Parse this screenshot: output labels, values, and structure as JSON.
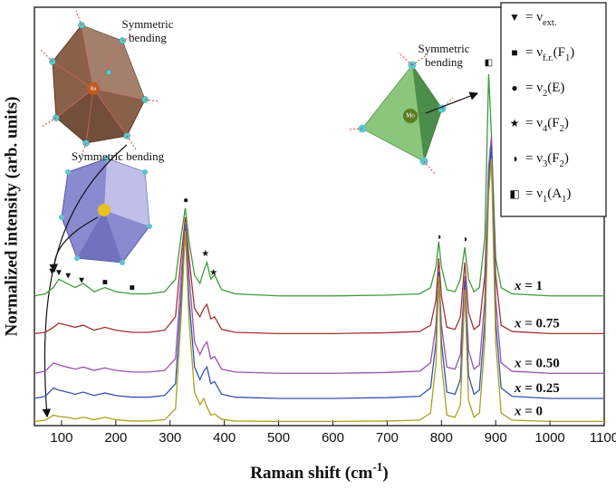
{
  "chart_data": {
    "type": "line",
    "y_label": "Normalized intensity (arb. units)",
    "x_label": [
      {
        "text": "Raman shift (cm"
      },
      {
        "text": "-1",
        "sup": true
      },
      {
        "text": ")"
      }
    ],
    "xlim": [
      50,
      1100
    ],
    "xticks": [
      100,
      200,
      300,
      400,
      500,
      600,
      700,
      800,
      900,
      1000,
      1100
    ],
    "ylim": [
      0,
      100
    ],
    "x": [
      50,
      70,
      85,
      95,
      110,
      125,
      140,
      160,
      180,
      200,
      230,
      260,
      290,
      310,
      320,
      328,
      335,
      345,
      355,
      362,
      368,
      375,
      382,
      395,
      420,
      500,
      600,
      700,
      760,
      780,
      790,
      795,
      800,
      810,
      825,
      835,
      843,
      850,
      860,
      870,
      880,
      887,
      892,
      900,
      910,
      930,
      1000,
      1100
    ],
    "series": [
      {
        "name": [
          {
            "text": "x",
            "italic": true
          },
          {
            "text": " = 1"
          }
        ],
        "color": "#3f9a3a",
        "values": [
          31,
          31.5,
          33,
          35,
          34,
          33,
          34,
          32,
          33,
          32,
          31.5,
          31.5,
          32,
          35,
          45,
          52,
          44,
          36,
          34,
          37,
          39,
          35,
          36,
          32.5,
          31.5,
          31,
          31,
          31.2,
          31.5,
          33,
          38,
          44,
          38,
          32.5,
          32,
          35,
          42.6,
          35,
          32,
          33,
          45,
          84,
          70,
          40,
          33,
          31.5,
          31,
          31
        ]
      },
      {
        "name": [
          {
            "text": "x",
            "italic": true
          },
          {
            "text": " = 0.75"
          }
        ],
        "color": "#a23232",
        "values": [
          22,
          22.3,
          23.5,
          24.5,
          24,
          23.5,
          24,
          22.8,
          23.5,
          22.8,
          22.3,
          22.3,
          22.8,
          26,
          40,
          49.8,
          40,
          28,
          26,
          28,
          29,
          25.5,
          26,
          23,
          22.3,
          22,
          22,
          22.2,
          22.5,
          24,
          30,
          40,
          31,
          23.5,
          23,
          26,
          39,
          27,
          23,
          24,
          36,
          60,
          65.5,
          36,
          24,
          22.5,
          22,
          22
        ]
      },
      {
        "name": [
          {
            "text": "x",
            "italic": true
          },
          {
            "text": " = 0.50"
          }
        ],
        "color": "#9a52ad",
        "values": [
          12.5,
          13,
          15,
          14.5,
          14,
          13.5,
          14,
          13.2,
          13.8,
          13.2,
          12.8,
          12.8,
          13.2,
          16,
          35,
          48.7,
          36,
          20,
          17,
          19,
          20,
          16,
          16.5,
          13.5,
          12.8,
          12.5,
          12.5,
          12.7,
          13,
          15,
          24,
          36.8,
          24,
          14,
          13.5,
          17,
          35.7,
          18,
          13.5,
          14.5,
          30,
          62,
          69,
          30,
          15,
          13,
          12.5,
          12.5
        ]
      },
      {
        "name": [
          {
            "text": "x",
            "italic": true
          },
          {
            "text": " = 0.25"
          }
        ],
        "color": "#3453b2",
        "values": [
          6.5,
          7,
          9,
          8.5,
          8,
          7.5,
          8,
          7.2,
          7.8,
          7.2,
          6.8,
          6.8,
          7.2,
          10,
          30,
          47.6,
          30,
          14,
          11,
          13,
          14,
          10,
          10.5,
          7.5,
          6.8,
          6.5,
          6.5,
          6.7,
          7,
          9,
          20,
          36.8,
          20,
          8,
          7.5,
          11,
          34.6,
          12,
          7.5,
          8.5,
          25,
          58,
          67,
          25,
          9,
          7,
          6.5,
          6.5
        ]
      },
      {
        "name": [
          {
            "text": "x",
            "italic": true
          },
          {
            "text": " = 0"
          }
        ],
        "color": "#a6a11e",
        "values": [
          1,
          1.3,
          2.5,
          2.2,
          2,
          1.6,
          2,
          1.4,
          2,
          1.4,
          1.1,
          1.1,
          1.4,
          4,
          25,
          46.5,
          25,
          8,
          5,
          6.5,
          4.5,
          2.5,
          2.8,
          1.5,
          1.1,
          1,
          1,
          1.1,
          1.3,
          3,
          15,
          35.7,
          15,
          2.5,
          2,
          5,
          32.5,
          6,
          2,
          3,
          20,
          55,
          63.8,
          20,
          3,
          1.3,
          1,
          1
        ]
      }
    ],
    "markers": [
      {
        "symbol": "▼",
        "x": 82,
        "y": 36.8
      },
      {
        "symbol": "▼",
        "x": 95,
        "y": 36.4
      },
      {
        "symbol": "▼",
        "x": 112,
        "y": 35.7
      },
      {
        "symbol": "▼",
        "x": 137,
        "y": 34.6
      },
      {
        "symbol": "■",
        "x": 180,
        "y": 34.2
      },
      {
        "symbol": "■",
        "x": 230,
        "y": 32.9
      },
      {
        "symbol": "●",
        "x": 329,
        "y": 53.7
      },
      {
        "symbol": "★",
        "x": 365,
        "y": 41
      },
      {
        "symbol": "★",
        "x": 380,
        "y": 36.4
      },
      {
        "symbol": "◑",
        "x": 795,
        "y": 45
      },
      {
        "symbol": "◑",
        "x": 843,
        "y": 44.4
      },
      {
        "symbol": "◧",
        "x": 887,
        "y": 86.6
      }
    ],
    "symbol_legend": [
      {
        "symbol": "▼",
        "segments": [
          {
            "text": "= ν"
          },
          {
            "text": "ext.",
            "sub": true
          }
        ]
      },
      {
        "symbol": "■",
        "segments": [
          {
            "text": "= ν"
          },
          {
            "text": "f.r.",
            "sub": true
          },
          {
            "text": "(F"
          },
          {
            "text": "1",
            "sub": true
          },
          {
            "text": ")"
          }
        ]
      },
      {
        "symbol": "●",
        "segments": [
          {
            "text": "= ν"
          },
          {
            "text": "2",
            "sub": true
          },
          {
            "text": "(E)"
          }
        ]
      },
      {
        "symbol": "★",
        "segments": [
          {
            "text": "= ν"
          },
          {
            "text": "4",
            "sub": true
          },
          {
            "text": "(F"
          },
          {
            "text": "2",
            "sub": true
          },
          {
            "text": ")"
          }
        ]
      },
      {
        "symbol": "◑",
        "segments": [
          {
            "text": "= ν"
          },
          {
            "text": "3",
            "sub": true
          },
          {
            "text": "(F"
          },
          {
            "text": "2",
            "sub": true
          },
          {
            "text": ")"
          }
        ]
      },
      {
        "symbol": "◧",
        "segments": [
          {
            "text": "= ν"
          },
          {
            "text": "1",
            "sub": true
          },
          {
            "text": "(A"
          },
          {
            "text": "1",
            "sub": true
          },
          {
            "text": ")"
          }
        ]
      }
    ],
    "annotations": [
      {
        "lines": [
          "Symmetric",
          "bending"
        ]
      },
      {
        "lines": [
          "Symmetric bending"
        ]
      },
      {
        "lines": [
          "Symmetric",
          "bending"
        ]
      }
    ],
    "atom_labels": [
      "Ba",
      "Mo"
    ]
  }
}
